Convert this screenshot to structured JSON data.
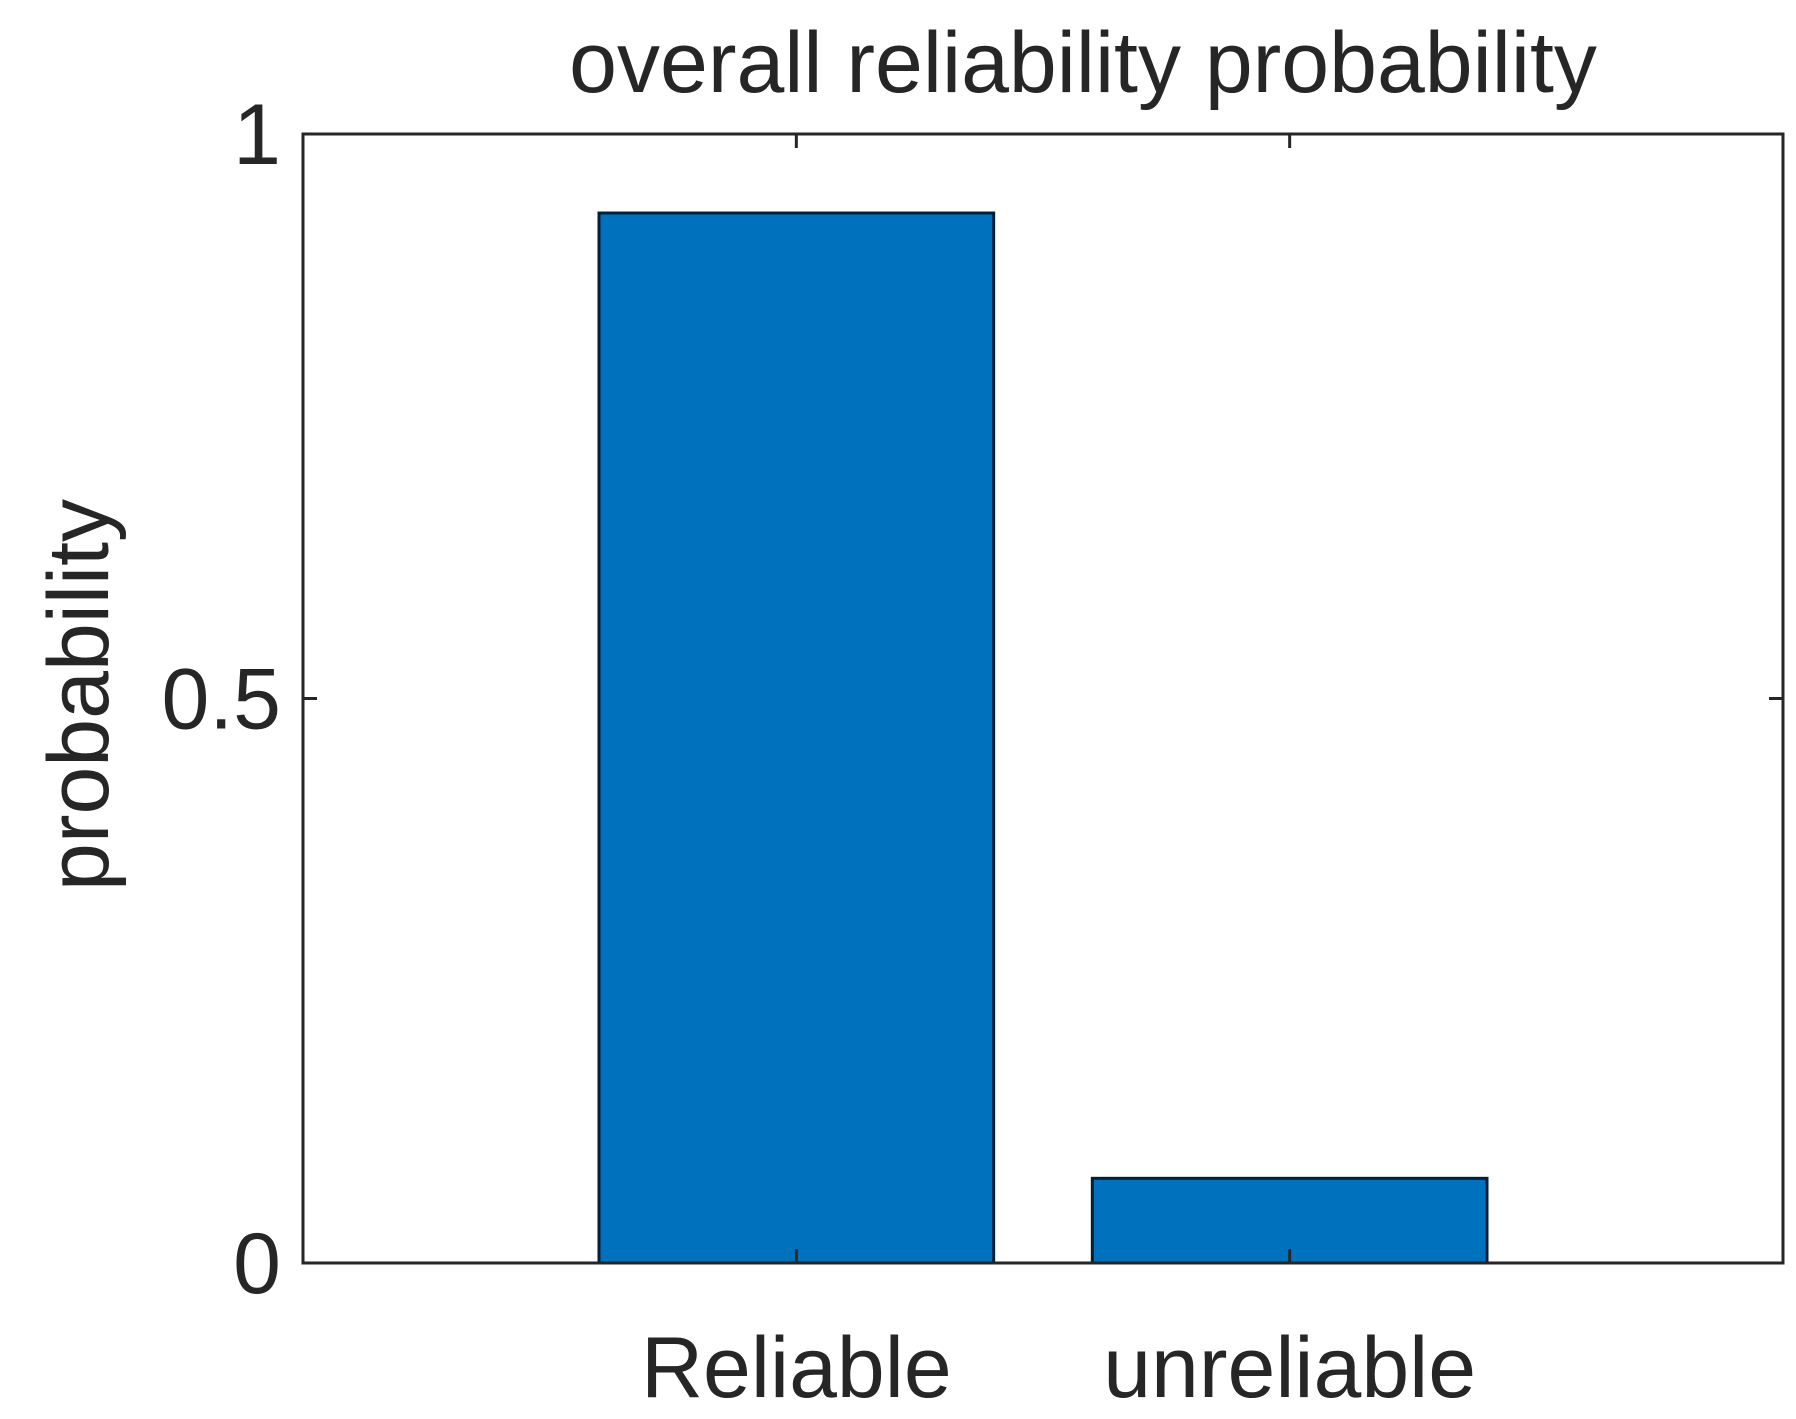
{
  "chart_data": {
    "type": "bar",
    "title": "overall reliability probability",
    "xlabel": "",
    "ylabel": "probability",
    "categories": [
      "Reliable",
      "unreliable"
    ],
    "values": [
      0.93,
      0.075
    ],
    "ylim": [
      0,
      1
    ],
    "yticks": [
      {
        "value": 0,
        "label": "0"
      },
      {
        "value": 0.5,
        "label": "0.5"
      },
      {
        "value": 1,
        "label": "1"
      }
    ],
    "bar_color": "#0072BD",
    "bar_edge_color": "#001f3a",
    "grid": false,
    "legend": "none"
  }
}
